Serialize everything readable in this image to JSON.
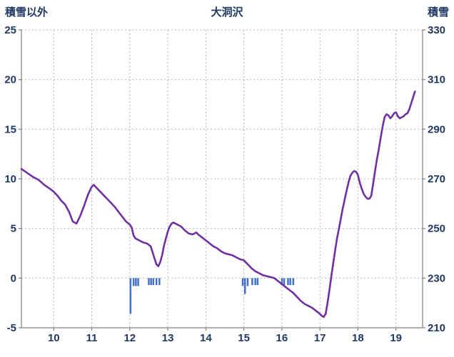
{
  "header": {
    "left_label": "積雪以外",
    "title": "大洞沢",
    "right_label": "積雪"
  },
  "chart_data": {
    "type": "line",
    "title": "大洞沢",
    "left_axis": {
      "label": "積雪以外",
      "min": -5,
      "max": 25,
      "ticks": [
        -5,
        0,
        5,
        10,
        15,
        20,
        25
      ],
      "gridlines": [
        0,
        5,
        10,
        15,
        20,
        25
      ]
    },
    "right_axis": {
      "label": "積雪",
      "min": 210,
      "max": 330,
      "ticks": [
        210,
        230,
        250,
        270,
        290,
        310,
        330
      ]
    },
    "x_axis": {
      "min": 9.15,
      "max": 19.7,
      "ticks": [
        10,
        11,
        12,
        13,
        14,
        15,
        16,
        17,
        18,
        19
      ]
    },
    "colors": {
      "grid": "#b3b3b3",
      "axis": "#7f7f7f",
      "text": "#1F3864",
      "line": "#7030A0",
      "bars": "#4472C4"
    },
    "series": {
      "color": "#7030A0",
      "points": [
        [
          9.15,
          11.0
        ],
        [
          9.3,
          10.6
        ],
        [
          9.45,
          10.2
        ],
        [
          9.6,
          9.9
        ],
        [
          9.75,
          9.4
        ],
        [
          9.9,
          9.0
        ],
        [
          10.0,
          8.7
        ],
        [
          10.1,
          8.3
        ],
        [
          10.2,
          7.8
        ],
        [
          10.3,
          7.4
        ],
        [
          10.4,
          6.7
        ],
        [
          10.45,
          6.2
        ],
        [
          10.5,
          5.7
        ],
        [
          10.6,
          5.5
        ],
        [
          10.7,
          6.3
        ],
        [
          10.8,
          7.3
        ],
        [
          10.9,
          8.4
        ],
        [
          11.0,
          9.2
        ],
        [
          11.05,
          9.4
        ],
        [
          11.1,
          9.2
        ],
        [
          11.2,
          8.8
        ],
        [
          11.3,
          8.4
        ],
        [
          11.4,
          8.0
        ],
        [
          11.5,
          7.6
        ],
        [
          11.6,
          7.2
        ],
        [
          11.7,
          6.7
        ],
        [
          11.8,
          6.2
        ],
        [
          11.9,
          5.7
        ],
        [
          12.0,
          5.4
        ],
        [
          12.05,
          5.1
        ],
        [
          12.1,
          4.3
        ],
        [
          12.15,
          4.0
        ],
        [
          12.25,
          3.8
        ],
        [
          12.35,
          3.6
        ],
        [
          12.45,
          3.5
        ],
        [
          12.55,
          3.2
        ],
        [
          12.6,
          2.6
        ],
        [
          12.65,
          2.0
        ],
        [
          12.7,
          1.4
        ],
        [
          12.75,
          1.2
        ],
        [
          12.8,
          1.6
        ],
        [
          12.85,
          2.3
        ],
        [
          12.9,
          3.3
        ],
        [
          13.0,
          4.7
        ],
        [
          13.05,
          5.2
        ],
        [
          13.1,
          5.5
        ],
        [
          13.15,
          5.6
        ],
        [
          13.25,
          5.4
        ],
        [
          13.35,
          5.2
        ],
        [
          13.45,
          4.8
        ],
        [
          13.55,
          4.5
        ],
        [
          13.65,
          4.4
        ],
        [
          13.7,
          4.5
        ],
        [
          13.75,
          4.6
        ],
        [
          13.8,
          4.4
        ],
        [
          13.9,
          4.1
        ],
        [
          14.0,
          3.8
        ],
        [
          14.1,
          3.5
        ],
        [
          14.2,
          3.2
        ],
        [
          14.3,
          3.0
        ],
        [
          14.4,
          2.7
        ],
        [
          14.5,
          2.5
        ],
        [
          14.6,
          2.4
        ],
        [
          14.7,
          2.3
        ],
        [
          14.8,
          2.1
        ],
        [
          14.9,
          1.9
        ],
        [
          15.0,
          1.8
        ],
        [
          15.1,
          1.4
        ],
        [
          15.2,
          1.0
        ],
        [
          15.3,
          0.7
        ],
        [
          15.4,
          0.5
        ],
        [
          15.5,
          0.3
        ],
        [
          15.6,
          0.2
        ],
        [
          15.7,
          0.1
        ],
        [
          15.8,
          0.0
        ],
        [
          15.9,
          -0.3
        ],
        [
          16.0,
          -0.6
        ],
        [
          16.1,
          -0.9
        ],
        [
          16.2,
          -1.2
        ],
        [
          16.3,
          -1.5
        ],
        [
          16.4,
          -1.9
        ],
        [
          16.5,
          -2.3
        ],
        [
          16.6,
          -2.6
        ],
        [
          16.7,
          -2.8
        ],
        [
          16.8,
          -3.0
        ],
        [
          16.9,
          -3.3
        ],
        [
          17.0,
          -3.6
        ],
        [
          17.05,
          -3.8
        ],
        [
          17.1,
          -3.9
        ],
        [
          17.15,
          -3.6
        ],
        [
          17.2,
          -2.5
        ],
        [
          17.25,
          -1.2
        ],
        [
          17.3,
          0.2
        ],
        [
          17.35,
          1.5
        ],
        [
          17.4,
          2.8
        ],
        [
          17.45,
          4.0
        ],
        [
          17.5,
          5.0
        ],
        [
          17.55,
          6.0
        ],
        [
          17.6,
          7.0
        ],
        [
          17.65,
          7.9
        ],
        [
          17.7,
          8.8
        ],
        [
          17.75,
          9.6
        ],
        [
          17.8,
          10.3
        ],
        [
          17.85,
          10.6
        ],
        [
          17.9,
          10.8
        ],
        [
          17.95,
          10.7
        ],
        [
          18.0,
          10.4
        ],
        [
          18.05,
          9.6
        ],
        [
          18.1,
          9.0
        ],
        [
          18.15,
          8.5
        ],
        [
          18.2,
          8.2
        ],
        [
          18.25,
          8.0
        ],
        [
          18.3,
          8.0
        ],
        [
          18.35,
          8.3
        ],
        [
          18.4,
          9.5
        ],
        [
          18.45,
          10.8
        ],
        [
          18.5,
          12.0
        ],
        [
          18.55,
          13.0
        ],
        [
          18.6,
          14.2
        ],
        [
          18.65,
          15.3
        ],
        [
          18.7,
          16.2
        ],
        [
          18.75,
          16.5
        ],
        [
          18.8,
          16.4
        ],
        [
          18.85,
          16.1
        ],
        [
          18.9,
          16.3
        ],
        [
          18.95,
          16.6
        ],
        [
          19.0,
          16.7
        ],
        [
          19.05,
          16.3
        ],
        [
          19.1,
          16.1
        ],
        [
          19.15,
          16.2
        ],
        [
          19.2,
          16.3
        ],
        [
          19.25,
          16.5
        ],
        [
          19.3,
          16.6
        ],
        [
          19.35,
          17.0
        ],
        [
          19.4,
          17.6
        ],
        [
          19.45,
          18.2
        ],
        [
          19.5,
          18.8
        ]
      ]
    },
    "bars": {
      "color": "#4472C4",
      "baseline": 0,
      "points": [
        [
          12.02,
          -3.6
        ],
        [
          12.1,
          -0.8
        ],
        [
          12.16,
          -0.8
        ],
        [
          12.22,
          -0.8
        ],
        [
          12.5,
          -0.7
        ],
        [
          12.56,
          -0.7
        ],
        [
          12.62,
          -0.7
        ],
        [
          12.7,
          -0.7
        ],
        [
          12.78,
          -0.7
        ],
        [
          14.97,
          -0.8
        ],
        [
          15.03,
          -1.6
        ],
        [
          15.1,
          -0.8
        ],
        [
          15.22,
          -0.7
        ],
        [
          15.3,
          -0.7
        ],
        [
          15.36,
          -0.7
        ],
        [
          16.0,
          -0.7
        ],
        [
          16.06,
          -0.7
        ],
        [
          16.16,
          -0.7
        ],
        [
          16.22,
          -0.7
        ],
        [
          16.3,
          -0.7
        ]
      ]
    }
  }
}
